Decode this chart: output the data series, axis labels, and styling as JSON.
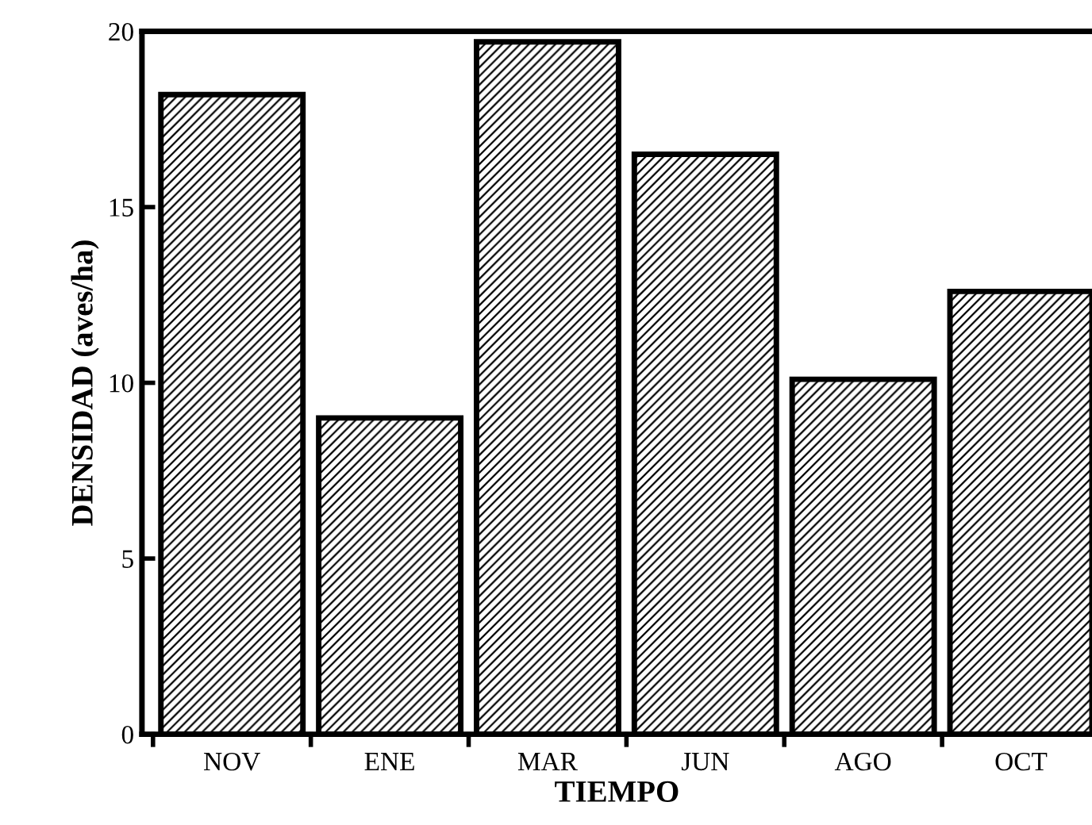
{
  "chart_data": {
    "type": "bar",
    "xlabel": "TIEMPO",
    "ylabel": "DENSIDAD (aves/ha)",
    "categories": [
      "NOV",
      "ENE",
      "MAR",
      "JUN",
      "AGO",
      "OCT"
    ],
    "values": [
      18.2,
      9.0,
      19.7,
      16.5,
      10.1,
      12.6
    ],
    "color": "#000000",
    "ylim": [
      0,
      20
    ],
    "yticks": [
      0,
      5,
      10,
      15,
      20
    ],
    "grid": false
  }
}
